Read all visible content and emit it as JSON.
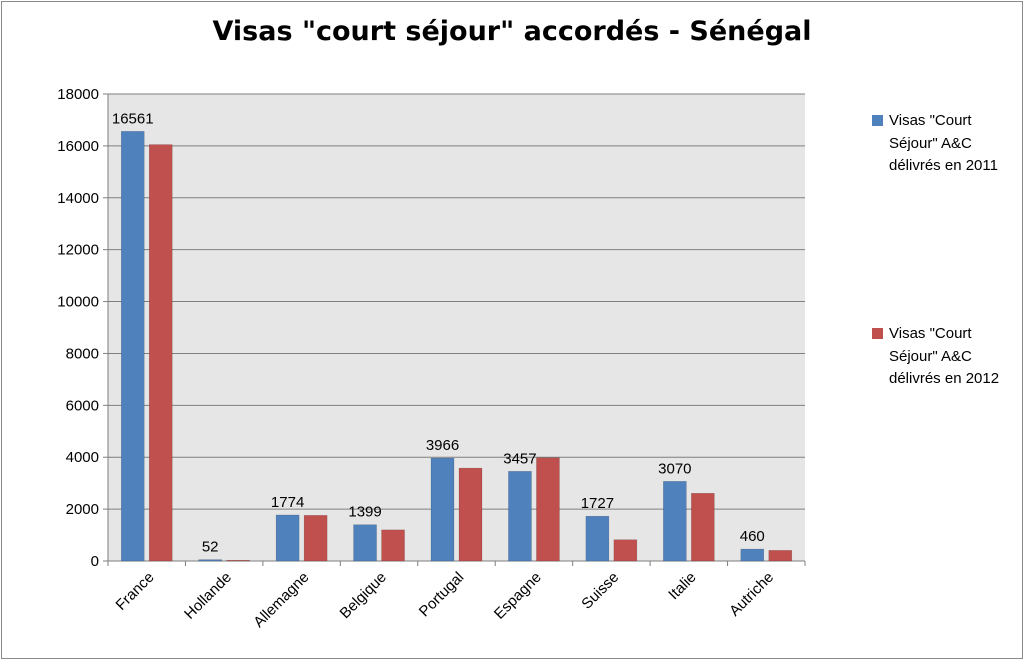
{
  "chart_data": {
    "type": "bar",
    "title": "Visas \"court séjour\" accordés - Sénégal",
    "categories": [
      "France",
      "Hollande",
      "Allemagne",
      "Belgique",
      "Portugal",
      "Espagne",
      "Suisse",
      "Italie",
      "Autriche"
    ],
    "series": [
      {
        "name": "Visas \"Court Séjour\" A&C délivrés en 2011",
        "color": "#4f81bd",
        "values": [
          16561,
          52,
          1774,
          1399,
          3966,
          3457,
          1727,
          3070,
          460
        ],
        "labels": [
          "16561",
          "52",
          "1774",
          "1399",
          "3966",
          "3457",
          "1727",
          "3070",
          "460"
        ]
      },
      {
        "name": "Visas \"Court Séjour\" A&C délivrés en 2012",
        "color": "#c0504d",
        "values": [
          16050,
          30,
          1760,
          1200,
          3580,
          3980,
          820,
          2610,
          410
        ]
      }
    ],
    "ylim": [
      0,
      18000
    ],
    "yticks": [
      "0",
      "2000",
      "4000",
      "6000",
      "8000",
      "10000",
      "12000",
      "14000",
      "16000",
      "18000"
    ],
    "xlabel": "",
    "ylabel": "",
    "grid": true,
    "plot_background": "#e6e6e6",
    "legend_position": "right"
  }
}
